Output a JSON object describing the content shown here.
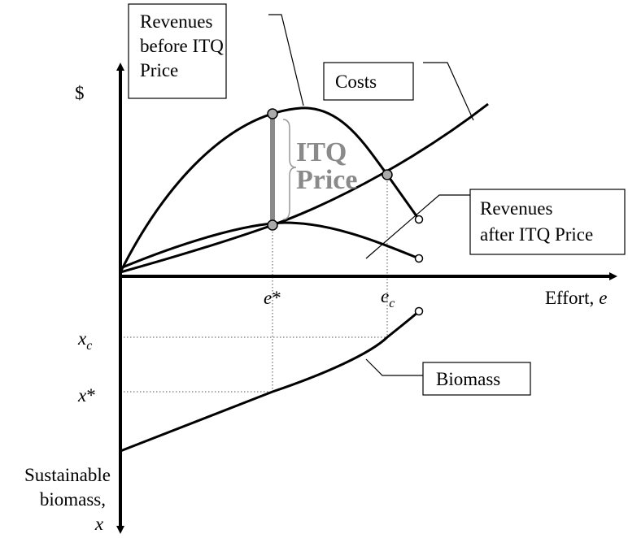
{
  "labels": {
    "revenues_before": [
      "Revenues",
      "before ITQ",
      "Price"
    ],
    "costs": "Costs",
    "y_axis": "$",
    "itq_price": [
      "ITQ",
      "Price"
    ],
    "revenues_after": [
      "Revenues",
      "after ITQ Price"
    ],
    "e_star": {
      "var": "e",
      "mark": "*"
    },
    "e_c": {
      "var": "e",
      "sub": "c"
    },
    "x_axis": {
      "text": "Effort,",
      "var": "e"
    },
    "x_c": {
      "var": "x",
      "sub": "c"
    },
    "x_star": {
      "var": "x",
      "mark": "*"
    },
    "biomass": "Biomass",
    "sustainable": [
      "Sustainable",
      "biomass,",
      "x"
    ]
  }
}
